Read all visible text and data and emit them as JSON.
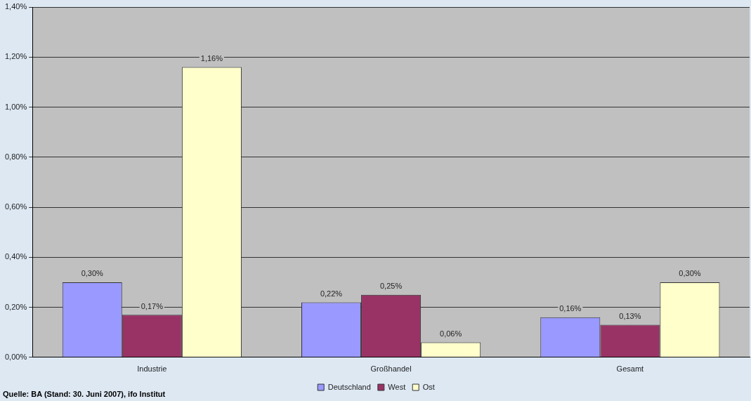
{
  "chart_data": {
    "type": "bar",
    "categories": [
      "Industrie",
      "Großhandel",
      "Gesamt"
    ],
    "series": [
      {
        "name": "Deutschland",
        "color": "#9999ff",
        "values": [
          0.3,
          0.22,
          0.16
        ],
        "value_labels": [
          "0,30%",
          "0,22%",
          "0,16%"
        ]
      },
      {
        "name": "West",
        "color": "#993366",
        "values": [
          0.17,
          0.25,
          0.13
        ],
        "value_labels": [
          "0,17%",
          "0,25%",
          "0,13%"
        ]
      },
      {
        "name": "Ost",
        "color": "#ffffcc",
        "values": [
          1.16,
          0.06,
          0.3
        ],
        "value_labels": [
          "1,16%",
          "0,06%",
          "0,30%"
        ]
      }
    ],
    "ylim": [
      0,
      1.4
    ],
    "yticks": [
      {
        "value": 0,
        "label": "0,00%"
      },
      {
        "value": 0.2,
        "label": "0,20%"
      },
      {
        "value": 0.4,
        "label": "0,40%"
      },
      {
        "value": 0.6,
        "label": "0,60%"
      },
      {
        "value": 0.8,
        "label": "0,80%"
      },
      {
        "value": 1.0,
        "label": "1,00%"
      },
      {
        "value": 1.2,
        "label": "1,20%"
      },
      {
        "value": 1.4,
        "label": "1,40%"
      }
    ],
    "grid": "y",
    "legend": "bottom",
    "annotations": [
      "Quelle: BA (Stand: 30. Juni 2007), ifo Institut"
    ]
  }
}
